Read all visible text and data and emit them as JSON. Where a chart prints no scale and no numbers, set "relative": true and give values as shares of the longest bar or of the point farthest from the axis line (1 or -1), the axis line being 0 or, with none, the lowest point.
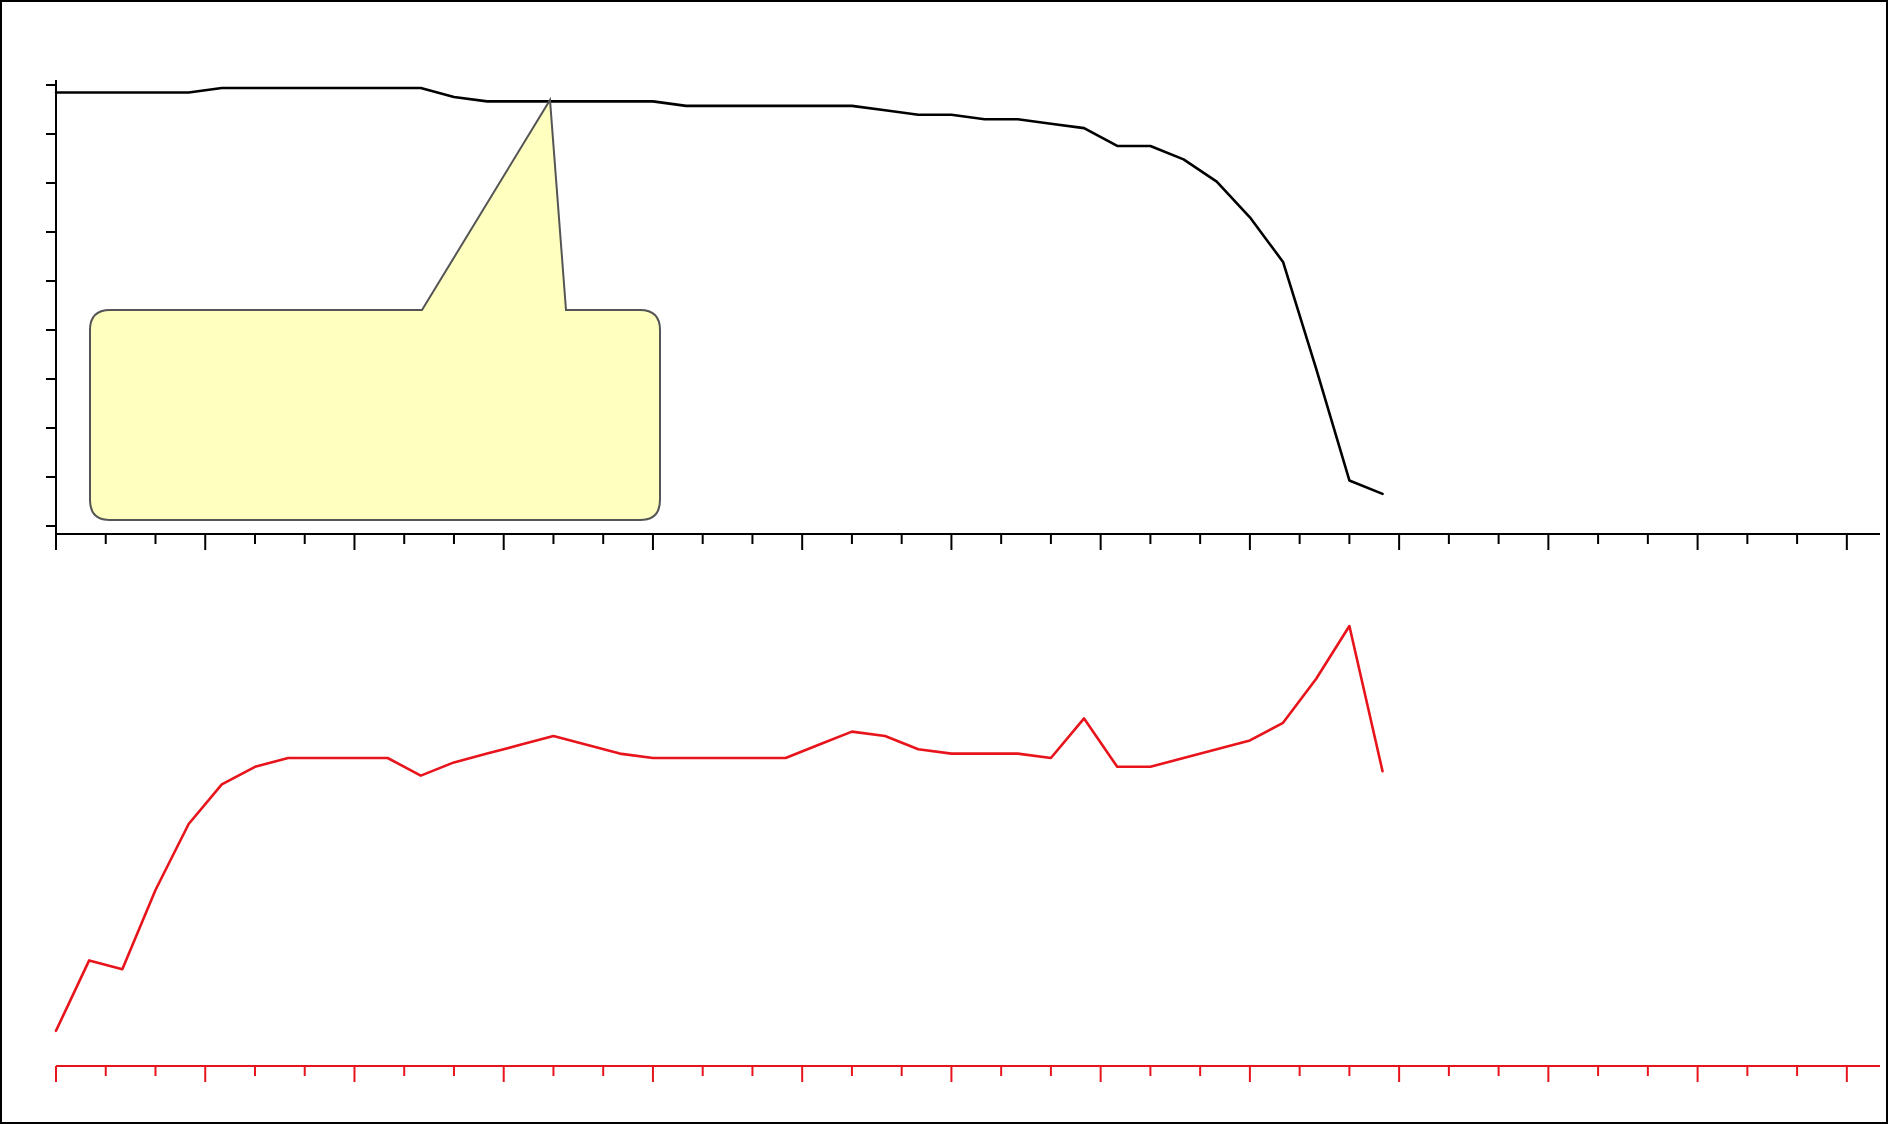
{
  "chart_data": [
    {
      "type": "line",
      "relative": true,
      "marker": "none",
      "categories": [
        null,
        null,
        null,
        null,
        null,
        null,
        null,
        null,
        null,
        null,
        null,
        null,
        null,
        null,
        null,
        null,
        null,
        null,
        null,
        null,
        null,
        null,
        null,
        null,
        null,
        null,
        null,
        null,
        null,
        null,
        null,
        null,
        null,
        null,
        null,
        null,
        null,
        null,
        null,
        null,
        null,
        null,
        null,
        null,
        null,
        null,
        null,
        null,
        null,
        null,
        null,
        null,
        null,
        null,
        null,
        null
      ],
      "series": [
        {
          "color": "#000000",
          "values": [
            0.99,
            0.99,
            0.99,
            0.99,
            0.99,
            1.0,
            1.0,
            1.0,
            1.0,
            1.0,
            1.0,
            1.0,
            0.98,
            0.97,
            0.97,
            0.97,
            0.97,
            0.97,
            0.97,
            0.96,
            0.96,
            0.96,
            0.96,
            0.96,
            0.96,
            0.95,
            0.94,
            0.94,
            0.93,
            0.93,
            0.92,
            0.91,
            0.87,
            0.87,
            0.84,
            0.79,
            0.71,
            0.61,
            0.37,
            0.12,
            0.09,
            null,
            null,
            null,
            null,
            null,
            null,
            null,
            null,
            null,
            null,
            null,
            null,
            null,
            null,
            null
          ]
        }
      ]
    },
    {
      "type": "line",
      "relative": true,
      "marker": "none",
      "categories": [
        null,
        null,
        null,
        null,
        null,
        null,
        null,
        null,
        null,
        null,
        null,
        null,
        null,
        null,
        null,
        null,
        null,
        null,
        null,
        null,
        null,
        null,
        null,
        null,
        null,
        null,
        null,
        null,
        null,
        null,
        null,
        null,
        null,
        null,
        null,
        null,
        null,
        null,
        null,
        null,
        null,
        null,
        null,
        null,
        null,
        null,
        null,
        null,
        null,
        null,
        null,
        null,
        null,
        null,
        null,
        null
      ],
      "series": [
        {
          "color": "#e8141b",
          "values": [
            0.08,
            0.24,
            0.22,
            0.4,
            0.55,
            0.64,
            0.68,
            0.7,
            0.7,
            0.7,
            0.7,
            0.66,
            0.69,
            0.71,
            0.73,
            0.75,
            0.73,
            0.71,
            0.7,
            0.7,
            0.7,
            0.7,
            0.7,
            0.73,
            0.76,
            0.75,
            0.72,
            0.71,
            0.71,
            0.71,
            0.7,
            0.79,
            0.68,
            0.68,
            0.7,
            0.72,
            0.74,
            0.78,
            0.88,
            1.0,
            0.67,
            null,
            null,
            null,
            null,
            null,
            null,
            null,
            null,
            null,
            null,
            null,
            null,
            null,
            null,
            null
          ]
        }
      ]
    }
  ]
}
